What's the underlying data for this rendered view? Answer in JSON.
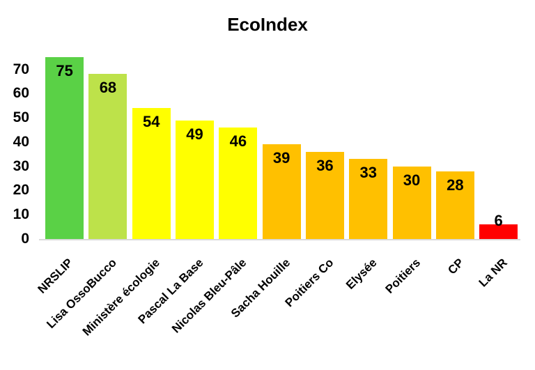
{
  "chart_data": {
    "type": "bar",
    "title": "EcoIndex",
    "categories": [
      "NRSLIP",
      "Lisa OssoBucco",
      "Ministère écologie",
      "Pascal La Base",
      "Nicolas Bleu-Pâle",
      "Sacha Houille",
      "Poitiers Co",
      "Elysée",
      "Poitiers",
      "CP",
      "La NR"
    ],
    "values": [
      75,
      68,
      54,
      49,
      46,
      39,
      36,
      33,
      30,
      28,
      6
    ],
    "bar_colors": [
      "#5AD146",
      "#BDE24A",
      "#FFFF00",
      "#FFFF00",
      "#FFFF00",
      "#FFC000",
      "#FFC000",
      "#FFC000",
      "#FFC000",
      "#FFC000",
      "#FF0000"
    ],
    "xlabel": "",
    "ylabel": "",
    "yticks": [
      0,
      10,
      20,
      30,
      40,
      50,
      60,
      70
    ],
    "ylim": [
      0,
      80
    ],
    "grid": false,
    "legend_position": "none",
    "value_label_position": "inside-end",
    "x_label_rotation_deg": -45,
    "colors": {
      "axis_line": "#d9d9d9",
      "text": "#000000",
      "background": "#ffffff"
    }
  }
}
